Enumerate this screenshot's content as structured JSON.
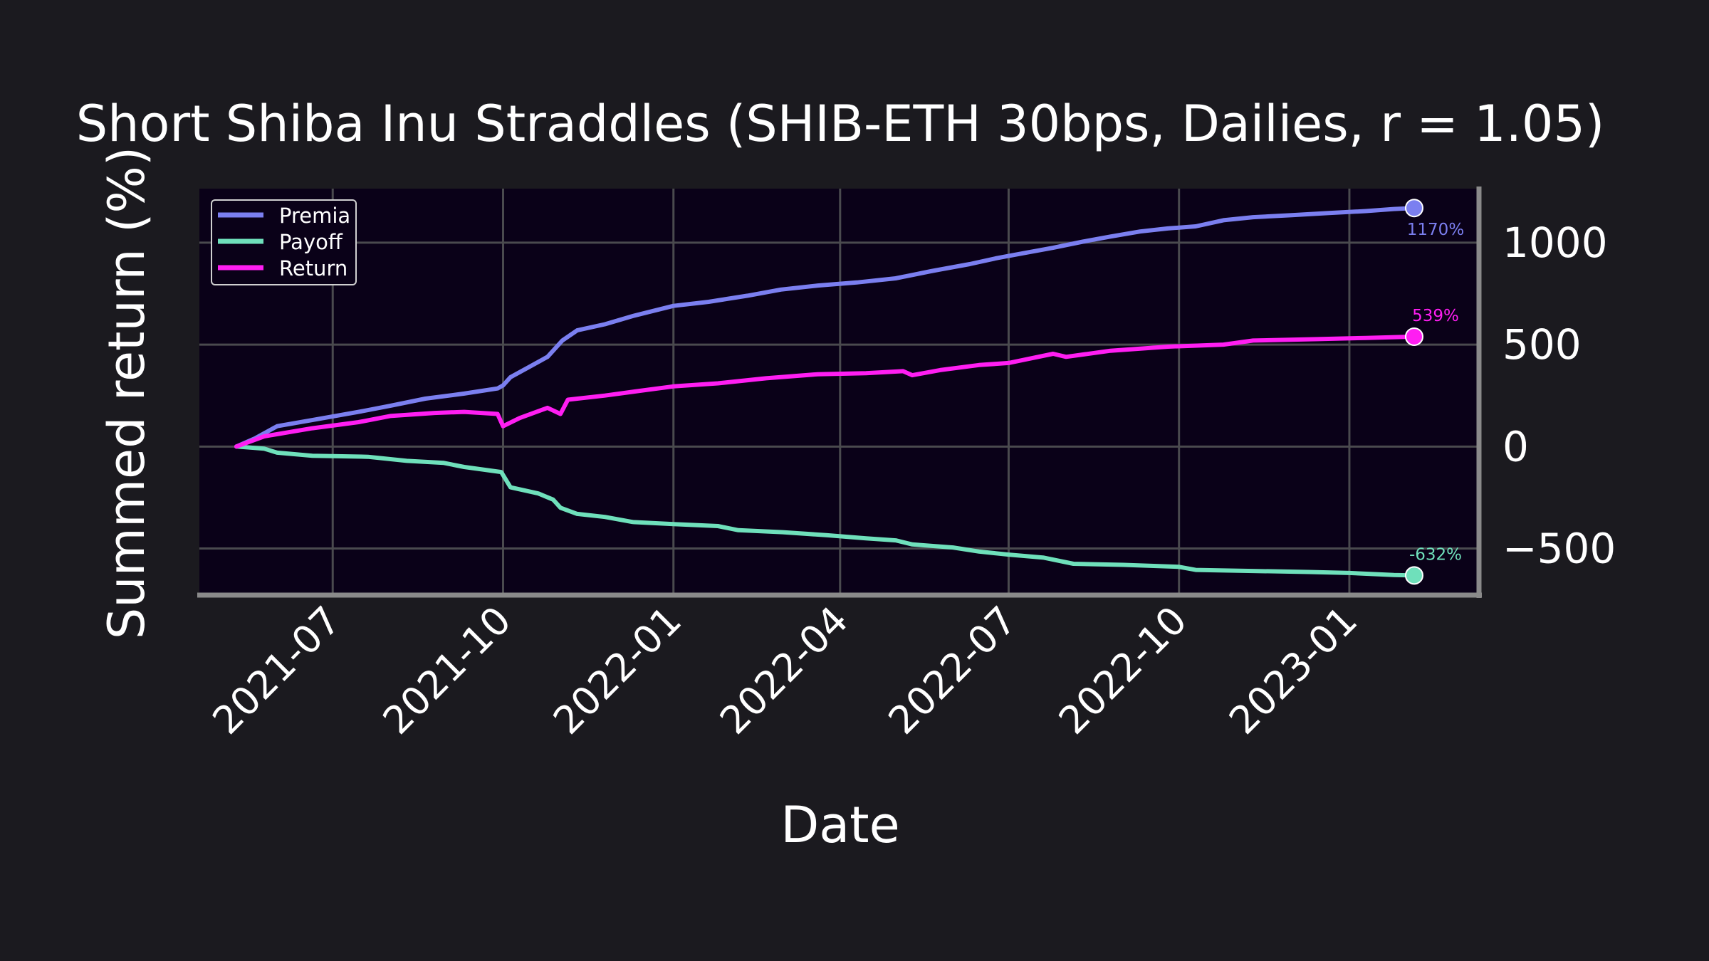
{
  "colors": {
    "background": "#1b1a1f",
    "plot_background": "#0a0118",
    "grid": "#4a4a4e",
    "spine": "#8a8a8a",
    "text": "#ffffff"
  },
  "chart_data": {
    "type": "line",
    "title": "Short Shiba Inu Straddles (SHIB-ETH 30bps, Dailies, r = 1.05)",
    "xlabel": "Date",
    "ylabel": "Summed return (%)",
    "x_range": [
      "2021-04-20",
      "2023-03-12"
    ],
    "ylim": [
      -725,
      1265
    ],
    "y_axis_side": "right",
    "grid": true,
    "legend_position": "top-left",
    "x_ticks": [
      "2021-07",
      "2021-10",
      "2022-01",
      "2022-04",
      "2022-07",
      "2022-10",
      "2023-01"
    ],
    "x_tick_dates": [
      "2021-07-01",
      "2021-10-01",
      "2022-01-01",
      "2022-04-01",
      "2022-07-01",
      "2022-10-01",
      "2023-01-01"
    ],
    "y_ticks": [
      1000,
      500,
      0,
      -500
    ],
    "y_tick_labels": [
      "1000",
      "500",
      "0",
      "−500"
    ],
    "series": [
      {
        "name": "Premia",
        "color": "#7b7ff0",
        "end_label": "1170%",
        "points": [
          [
            "2021-05-10",
            0
          ],
          [
            "2021-05-20",
            40
          ],
          [
            "2021-06-01",
            100
          ],
          [
            "2021-06-20",
            130
          ],
          [
            "2021-07-15",
            170
          ],
          [
            "2021-08-01",
            200
          ],
          [
            "2021-08-20",
            235
          ],
          [
            "2021-09-10",
            260
          ],
          [
            "2021-09-28",
            285
          ],
          [
            "2021-10-01",
            300
          ],
          [
            "2021-10-05",
            340
          ],
          [
            "2021-10-15",
            390
          ],
          [
            "2021-10-25",
            440
          ],
          [
            "2021-11-02",
            520
          ],
          [
            "2021-11-10",
            570
          ],
          [
            "2021-11-25",
            600
          ],
          [
            "2021-12-10",
            640
          ],
          [
            "2022-01-01",
            690
          ],
          [
            "2022-01-20",
            710
          ],
          [
            "2022-02-10",
            740
          ],
          [
            "2022-02-28",
            770
          ],
          [
            "2022-03-20",
            790
          ],
          [
            "2022-04-10",
            805
          ],
          [
            "2022-05-01",
            825
          ],
          [
            "2022-05-20",
            860
          ],
          [
            "2022-06-10",
            895
          ],
          [
            "2022-06-25",
            925
          ],
          [
            "2022-07-10",
            950
          ],
          [
            "2022-07-25",
            975
          ],
          [
            "2022-08-10",
            1005
          ],
          [
            "2022-08-25",
            1030
          ],
          [
            "2022-09-10",
            1055
          ],
          [
            "2022-09-25",
            1070
          ],
          [
            "2022-10-10",
            1080
          ],
          [
            "2022-10-25",
            1110
          ],
          [
            "2022-11-10",
            1125
          ],
          [
            "2022-12-01",
            1135
          ],
          [
            "2022-12-20",
            1145
          ],
          [
            "2023-01-10",
            1155
          ],
          [
            "2023-01-25",
            1165
          ],
          [
            "2023-02-05",
            1170
          ]
        ]
      },
      {
        "name": "Payoff",
        "color": "#6fe0bb",
        "end_label": "-632%",
        "points": [
          [
            "2021-05-10",
            0
          ],
          [
            "2021-05-25",
            -10
          ],
          [
            "2021-06-01",
            -30
          ],
          [
            "2021-06-20",
            -45
          ],
          [
            "2021-07-20",
            -50
          ],
          [
            "2021-08-10",
            -70
          ],
          [
            "2021-08-30",
            -80
          ],
          [
            "2021-09-10",
            -100
          ],
          [
            "2021-09-30",
            -125
          ],
          [
            "2021-10-05",
            -200
          ],
          [
            "2021-10-20",
            -230
          ],
          [
            "2021-10-28",
            -260
          ],
          [
            "2021-11-01",
            -300
          ],
          [
            "2021-11-10",
            -330
          ],
          [
            "2021-11-25",
            -345
          ],
          [
            "2021-12-10",
            -370
          ],
          [
            "2022-01-01",
            -380
          ],
          [
            "2022-01-25",
            -390
          ],
          [
            "2022-02-05",
            -410
          ],
          [
            "2022-03-01",
            -420
          ],
          [
            "2022-03-25",
            -435
          ],
          [
            "2022-04-15",
            -450
          ],
          [
            "2022-05-01",
            -460
          ],
          [
            "2022-05-10",
            -480
          ],
          [
            "2022-06-01",
            -495
          ],
          [
            "2022-06-15",
            -515
          ],
          [
            "2022-07-01",
            -530
          ],
          [
            "2022-07-20",
            -545
          ],
          [
            "2022-08-05",
            -575
          ],
          [
            "2022-09-01",
            -580
          ],
          [
            "2022-10-01",
            -590
          ],
          [
            "2022-10-10",
            -605
          ],
          [
            "2022-11-10",
            -610
          ],
          [
            "2022-12-10",
            -615
          ],
          [
            "2023-01-01",
            -620
          ],
          [
            "2023-01-25",
            -630
          ],
          [
            "2023-02-05",
            -632
          ]
        ]
      },
      {
        "name": "Return",
        "color": "#ff1ef2",
        "end_label": "539%",
        "points": [
          [
            "2021-05-10",
            0
          ],
          [
            "2021-05-25",
            50
          ],
          [
            "2021-06-20",
            90
          ],
          [
            "2021-07-15",
            120
          ],
          [
            "2021-08-01",
            150
          ],
          [
            "2021-08-25",
            165
          ],
          [
            "2021-09-10",
            170
          ],
          [
            "2021-09-28",
            160
          ],
          [
            "2021-10-01",
            100
          ],
          [
            "2021-10-10",
            140
          ],
          [
            "2021-10-25",
            190
          ],
          [
            "2021-11-01",
            160
          ],
          [
            "2021-11-05",
            230
          ],
          [
            "2021-11-25",
            250
          ],
          [
            "2021-12-15",
            275
          ],
          [
            "2022-01-01",
            295
          ],
          [
            "2022-01-25",
            310
          ],
          [
            "2022-02-20",
            335
          ],
          [
            "2022-03-20",
            355
          ],
          [
            "2022-04-15",
            360
          ],
          [
            "2022-05-05",
            370
          ],
          [
            "2022-05-10",
            350
          ],
          [
            "2022-05-25",
            375
          ],
          [
            "2022-06-15",
            400
          ],
          [
            "2022-07-01",
            410
          ],
          [
            "2022-07-25",
            455
          ],
          [
            "2022-08-01",
            440
          ],
          [
            "2022-08-25",
            470
          ],
          [
            "2022-09-25",
            490
          ],
          [
            "2022-10-25",
            500
          ],
          [
            "2022-11-10",
            520
          ],
          [
            "2022-12-15",
            527
          ],
          [
            "2023-01-10",
            533
          ],
          [
            "2023-02-05",
            539
          ]
        ]
      }
    ]
  }
}
